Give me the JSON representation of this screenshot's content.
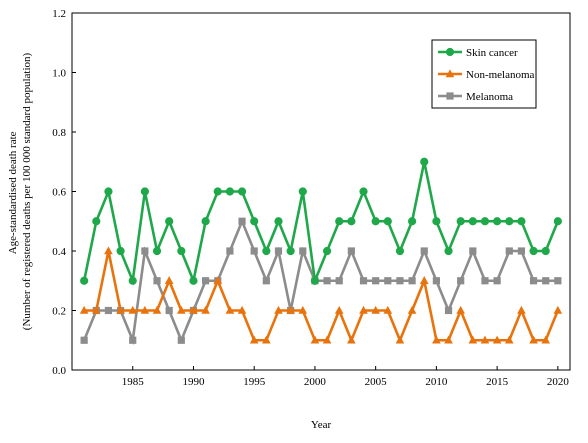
{
  "chart_data": {
    "type": "line",
    "title": "",
    "xlabel": "Year",
    "ylabel_lines": [
      "Age-standardised death rate",
      "(Number of registered deaths per 100 000 standard population)"
    ],
    "xlim": [
      1980,
      2021
    ],
    "ylim": [
      0,
      1.2
    ],
    "x_ticks": [
      1985,
      1990,
      1995,
      2000,
      2005,
      2010,
      2015,
      2020
    ],
    "x_tick_labels": [
      "1985",
      "1990",
      "1995",
      "2000",
      "2005",
      "2010",
      "2015",
      "2020"
    ],
    "y_ticks": [
      0,
      0.2,
      0.4,
      0.6,
      0.8,
      1.0,
      1.2
    ],
    "y_tick_labels": [
      "0.0",
      "0.2",
      "0.4",
      "0.6",
      "0.8",
      "1.0",
      "1.2"
    ],
    "grid": false,
    "legend_position": "top-right",
    "x": [
      1981,
      1982,
      1983,
      1984,
      1985,
      1986,
      1987,
      1988,
      1989,
      1990,
      1991,
      1992,
      1993,
      1994,
      1995,
      1996,
      1997,
      1998,
      1999,
      2000,
      2001,
      2002,
      2003,
      2004,
      2005,
      2006,
      2007,
      2008,
      2009,
      2010,
      2011,
      2012,
      2013,
      2014,
      2015,
      2016,
      2017,
      2018,
      2019,
      2020
    ],
    "series": [
      {
        "name": "Skin cancer",
        "color": "#1fa84a",
        "marker": "circle",
        "values": [
          0.3,
          0.5,
          0.6,
          0.4,
          0.3,
          0.6,
          0.4,
          0.5,
          0.4,
          0.3,
          0.5,
          0.6,
          0.6,
          0.6,
          0.5,
          0.4,
          0.5,
          0.4,
          0.6,
          0.3,
          0.4,
          0.5,
          0.5,
          0.6,
          0.5,
          0.5,
          0.4,
          0.5,
          0.7,
          0.5,
          0.4,
          0.5,
          0.5,
          0.5,
          0.5,
          0.5,
          0.5,
          0.4,
          0.4,
          0.5
        ]
      },
      {
        "name": "Non-melanoma",
        "color": "#e8730c",
        "marker": "triangle",
        "values": [
          0.2,
          0.2,
          0.4,
          0.2,
          0.2,
          0.2,
          0.2,
          0.3,
          0.2,
          0.2,
          0.2,
          0.3,
          0.2,
          0.2,
          0.1,
          0.1,
          0.2,
          0.2,
          0.2,
          0.1,
          0.1,
          0.2,
          0.1,
          0.2,
          0.2,
          0.2,
          0.1,
          0.2,
          0.3,
          0.1,
          0.1,
          0.2,
          0.1,
          0.1,
          0.1,
          0.1,
          0.2,
          0.1,
          0.1,
          0.2
        ]
      },
      {
        "name": "Melanoma",
        "color": "#8c8c8c",
        "marker": "square",
        "values": [
          0.1,
          0.2,
          0.2,
          0.2,
          0.1,
          0.4,
          0.3,
          0.2,
          0.1,
          0.2,
          0.3,
          0.3,
          0.4,
          0.5,
          0.4,
          0.3,
          0.4,
          0.2,
          0.4,
          0.3,
          0.3,
          0.3,
          0.4,
          0.3,
          0.3,
          0.3,
          0.3,
          0.3,
          0.4,
          0.3,
          0.2,
          0.3,
          0.4,
          0.3,
          0.3,
          0.4,
          0.4,
          0.3,
          0.3,
          0.3
        ]
      }
    ]
  }
}
